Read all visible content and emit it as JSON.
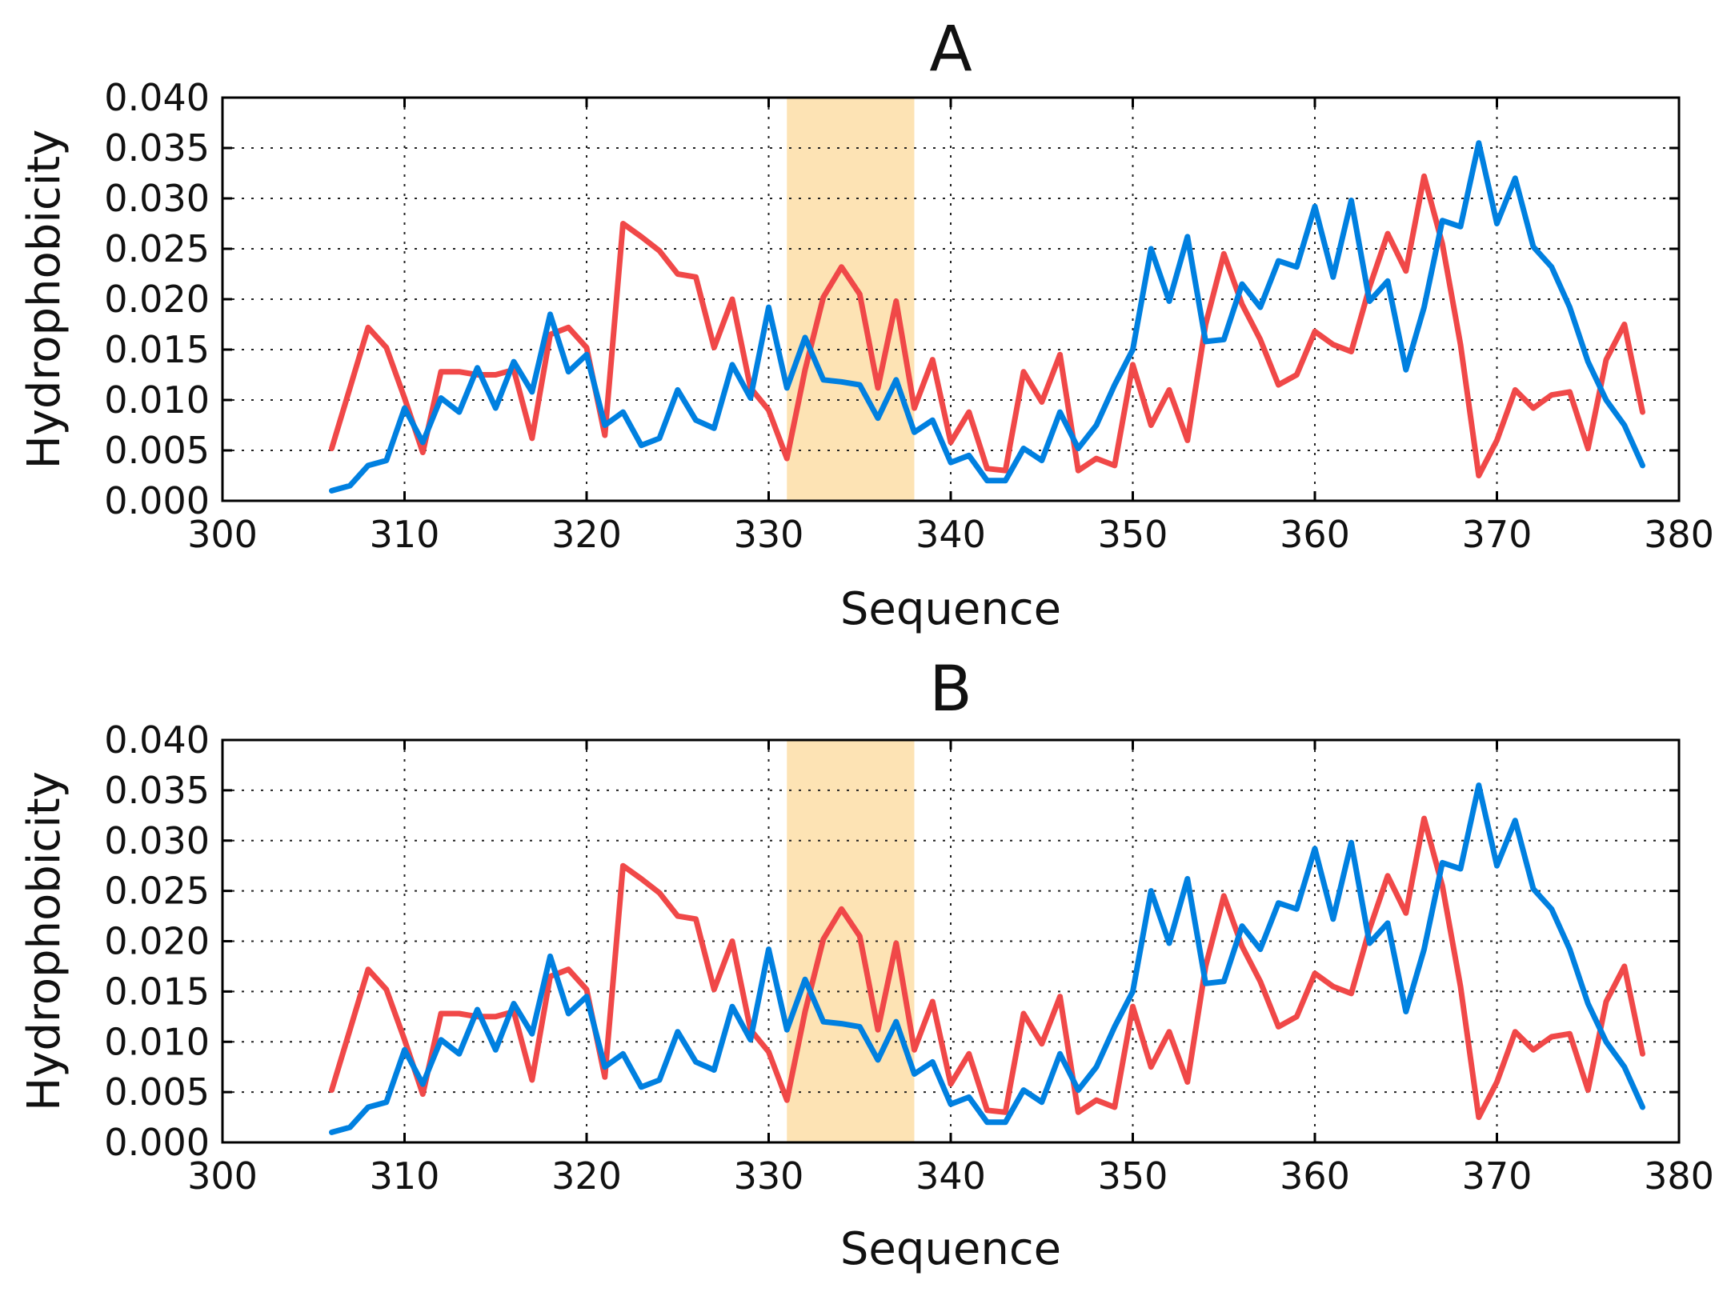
{
  "chart_data": [
    {
      "type": "line",
      "title": "A",
      "xlabel": "Sequence",
      "ylabel": "Hydrophobicity",
      "xlim": [
        300,
        380
      ],
      "ylim": [
        0.0,
        0.04
      ],
      "xticks": [
        "300",
        "310",
        "320",
        "330",
        "340",
        "350",
        "360",
        "370",
        "380"
      ],
      "yticks": [
        "0.000",
        "0.005",
        "0.010",
        "0.015",
        "0.020",
        "0.025",
        "0.030",
        "0.035",
        "0.040"
      ],
      "grid": true,
      "highlight": {
        "x_start": 331,
        "x_end": 338,
        "color": "#fde3b4"
      },
      "x": [
        306,
        307,
        308,
        309,
        310,
        311,
        312,
        313,
        314,
        315,
        316,
        317,
        318,
        319,
        320,
        321,
        322,
        323,
        324,
        325,
        326,
        327,
        328,
        329,
        330,
        331,
        332,
        333,
        334,
        335,
        336,
        337,
        338,
        339,
        340,
        341,
        342,
        343,
        344,
        345,
        346,
        347,
        348,
        349,
        350,
        351,
        352,
        353,
        354,
        355,
        356,
        357,
        358,
        359,
        360,
        361,
        362,
        363,
        364,
        365,
        366,
        367,
        368,
        369,
        370,
        371,
        372,
        373,
        374,
        375,
        376,
        377,
        378
      ],
      "series": [
        {
          "name": "red",
          "color": "#f04848",
          "values": [
            0.0052,
            0.0112,
            0.0172,
            0.0152,
            0.0102,
            0.0048,
            0.0128,
            0.0128,
            0.0125,
            0.0125,
            0.013,
            0.0062,
            0.0165,
            0.0172,
            0.0152,
            0.0065,
            0.0275,
            0.0262,
            0.0248,
            0.0225,
            0.0222,
            0.0152,
            0.02,
            0.0112,
            0.009,
            0.0042,
            0.013,
            0.0202,
            0.0232,
            0.0205,
            0.0112,
            0.0198,
            0.0092,
            0.014,
            0.0058,
            0.0088,
            0.0032,
            0.003,
            0.0128,
            0.0098,
            0.0145,
            0.003,
            0.0042,
            0.0035,
            0.0135,
            0.0075,
            0.011,
            0.006,
            0.0175,
            0.0245,
            0.0195,
            0.016,
            0.0115,
            0.0125,
            0.0168,
            0.0155,
            0.0148,
            0.0212,
            0.0265,
            0.0228,
            0.0322,
            0.0255,
            0.0155,
            0.0025,
            0.006,
            0.011,
            0.0092,
            0.0105,
            0.0108,
            0.0052,
            0.014,
            0.0175,
            0.0088
          ]
        },
        {
          "name": "blue",
          "color": "#0080e0",
          "values": [
            0.001,
            0.0015,
            0.0035,
            0.004,
            0.0092,
            0.0058,
            0.0102,
            0.0088,
            0.0132,
            0.0092,
            0.0138,
            0.0108,
            0.0185,
            0.0128,
            0.0145,
            0.0075,
            0.0088,
            0.0055,
            0.0062,
            0.011,
            0.008,
            0.0072,
            0.0135,
            0.0102,
            0.0192,
            0.0112,
            0.0162,
            0.012,
            0.0118,
            0.0115,
            0.0082,
            0.012,
            0.0068,
            0.008,
            0.0038,
            0.0045,
            0.002,
            0.002,
            0.0052,
            0.004,
            0.0088,
            0.0052,
            0.0075,
            0.0115,
            0.015,
            0.025,
            0.0198,
            0.0262,
            0.0158,
            0.016,
            0.0215,
            0.0192,
            0.0238,
            0.0232,
            0.0292,
            0.0222,
            0.0298,
            0.0198,
            0.0218,
            0.013,
            0.0192,
            0.0278,
            0.0272,
            0.0355,
            0.0275,
            0.032,
            0.0252,
            0.0232,
            0.0192,
            0.0138,
            0.01,
            0.0075,
            0.0035
          ]
        }
      ]
    },
    {
      "type": "line",
      "title": "B",
      "xlabel": "Sequence",
      "ylabel": "Hydrophobicity",
      "xlim": [
        300,
        380
      ],
      "ylim": [
        0.0,
        0.04
      ],
      "xticks": [
        "300",
        "310",
        "320",
        "330",
        "340",
        "350",
        "360",
        "370",
        "380"
      ],
      "yticks": [
        "0.000",
        "0.005",
        "0.010",
        "0.015",
        "0.020",
        "0.025",
        "0.030",
        "0.035",
        "0.040"
      ],
      "grid": true,
      "highlight": {
        "x_start": 331,
        "x_end": 338,
        "color": "#fde3b4"
      },
      "x": [
        306,
        307,
        308,
        309,
        310,
        311,
        312,
        313,
        314,
        315,
        316,
        317,
        318,
        319,
        320,
        321,
        322,
        323,
        324,
        325,
        326,
        327,
        328,
        329,
        330,
        331,
        332,
        333,
        334,
        335,
        336,
        337,
        338,
        339,
        340,
        341,
        342,
        343,
        344,
        345,
        346,
        347,
        348,
        349,
        350,
        351,
        352,
        353,
        354,
        355,
        356,
        357,
        358,
        359,
        360,
        361,
        362,
        363,
        364,
        365,
        366,
        367,
        368,
        369,
        370,
        371,
        372,
        373,
        374,
        375,
        376,
        377,
        378
      ],
      "series": [
        {
          "name": "red",
          "color": "#f04848",
          "values": [
            0.0052,
            0.0112,
            0.0172,
            0.0152,
            0.0102,
            0.0048,
            0.0128,
            0.0128,
            0.0125,
            0.0125,
            0.013,
            0.0062,
            0.0165,
            0.0172,
            0.0152,
            0.0065,
            0.0275,
            0.0262,
            0.0248,
            0.0225,
            0.0222,
            0.0152,
            0.02,
            0.0112,
            0.009,
            0.0042,
            0.013,
            0.0202,
            0.0232,
            0.0205,
            0.0112,
            0.0198,
            0.0092,
            0.014,
            0.0058,
            0.0088,
            0.0032,
            0.003,
            0.0128,
            0.0098,
            0.0145,
            0.003,
            0.0042,
            0.0035,
            0.0135,
            0.0075,
            0.011,
            0.006,
            0.0175,
            0.0245,
            0.0195,
            0.016,
            0.0115,
            0.0125,
            0.0168,
            0.0155,
            0.0148,
            0.0212,
            0.0265,
            0.0228,
            0.0322,
            0.0255,
            0.0155,
            0.0025,
            0.006,
            0.011,
            0.0092,
            0.0105,
            0.0108,
            0.0052,
            0.014,
            0.0175,
            0.0088
          ]
        },
        {
          "name": "blue",
          "color": "#0080e0",
          "values": [
            0.001,
            0.0015,
            0.0035,
            0.004,
            0.0092,
            0.0058,
            0.0102,
            0.0088,
            0.0132,
            0.0092,
            0.0138,
            0.0108,
            0.0185,
            0.0128,
            0.0145,
            0.0075,
            0.0088,
            0.0055,
            0.0062,
            0.011,
            0.008,
            0.0072,
            0.0135,
            0.0102,
            0.0192,
            0.0112,
            0.0162,
            0.012,
            0.0118,
            0.0115,
            0.0082,
            0.012,
            0.0068,
            0.008,
            0.0038,
            0.0045,
            0.002,
            0.002,
            0.0052,
            0.004,
            0.0088,
            0.0052,
            0.0075,
            0.0115,
            0.015,
            0.025,
            0.0198,
            0.0262,
            0.0158,
            0.016,
            0.0215,
            0.0192,
            0.0238,
            0.0232,
            0.0292,
            0.0222,
            0.0298,
            0.0198,
            0.0218,
            0.013,
            0.0192,
            0.0278,
            0.0272,
            0.0355,
            0.0275,
            0.032,
            0.0252,
            0.0232,
            0.0192,
            0.0138,
            0.01,
            0.0075,
            0.0035
          ]
        }
      ]
    }
  ]
}
